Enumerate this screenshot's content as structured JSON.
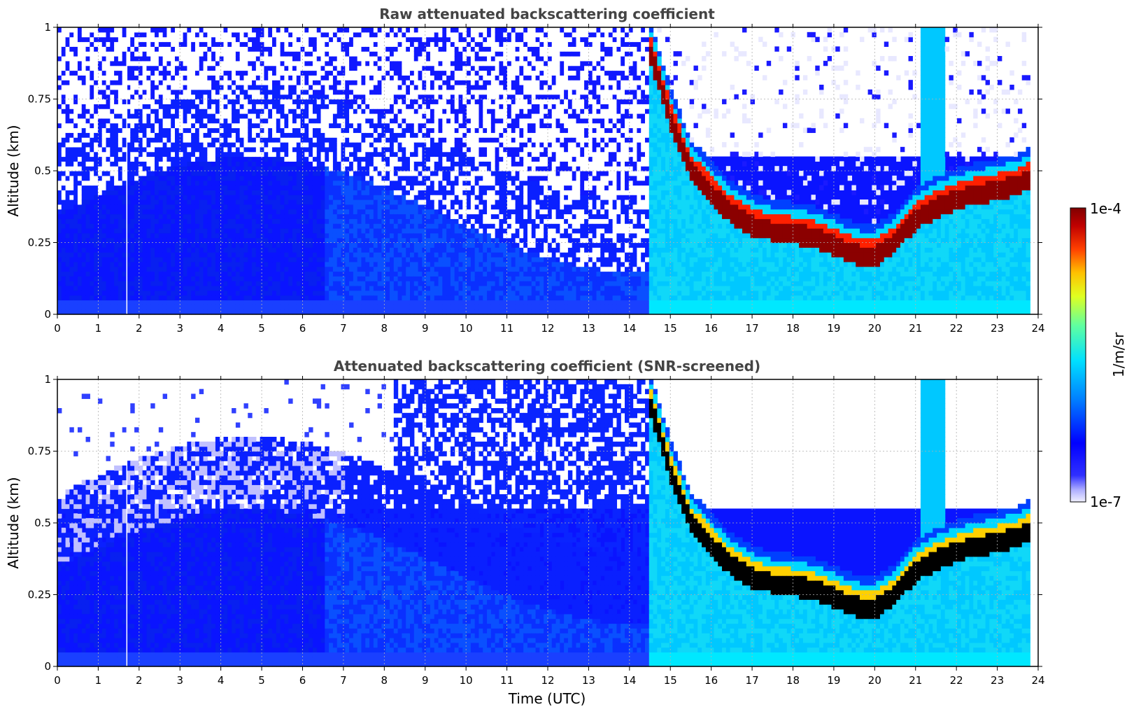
{
  "chart_data": [
    {
      "type": "heatmap",
      "title": "Raw attenuated backscattering coefficient",
      "ylabel": "Altitude (km)",
      "xlabel": "",
      "xlim": [
        0,
        24
      ],
      "ylim": [
        0,
        1
      ],
      "x_ticks": [
        0,
        1,
        2,
        3,
        4,
        5,
        6,
        7,
        8,
        9,
        10,
        11,
        12,
        13,
        14,
        15,
        16,
        17,
        18,
        19,
        20,
        21,
        22,
        23,
        24
      ],
      "y_ticks": [
        "0",
        "0.25",
        "0.5",
        "0.75",
        "1"
      ],
      "y_tick_values": [
        0,
        0.25,
        0.5,
        0.75,
        1
      ],
      "grid": true,
      "variant": "raw",
      "cloud_layer": {
        "description_free": true,
        "time": [
          14.5,
          15.0,
          15.5,
          16.0,
          16.5,
          17.0,
          17.5,
          18.0,
          18.5,
          19.0,
          19.5,
          20.0,
          20.5,
          21.0,
          21.5,
          22.0,
          22.5,
          23.0,
          23.5,
          23.8
        ],
        "center_altitude": [
          0.92,
          0.68,
          0.5,
          0.42,
          0.35,
          0.31,
          0.29,
          0.28,
          0.27,
          0.24,
          0.21,
          0.2,
          0.25,
          0.33,
          0.37,
          0.4,
          0.42,
          0.43,
          0.45,
          0.47
        ]
      }
    },
    {
      "type": "heatmap",
      "title": "Attenuated backscattering coefficient (SNR-screened)",
      "ylabel": "Altitude (km)",
      "xlabel": "Time (UTC)",
      "xlim": [
        0,
        24
      ],
      "ylim": [
        0,
        1
      ],
      "x_ticks": [
        0,
        1,
        2,
        3,
        4,
        5,
        6,
        7,
        8,
        9,
        10,
        11,
        12,
        13,
        14,
        15,
        16,
        17,
        18,
        19,
        20,
        21,
        22,
        23,
        24
      ],
      "y_ticks": [
        "0",
        "0.25",
        "0.5",
        "0.75",
        "1"
      ],
      "y_tick_values": [
        0,
        0.25,
        0.5,
        0.75,
        1
      ],
      "grid": true,
      "variant": "screened",
      "cloud_layer": {
        "time": [
          14.5,
          15.0,
          15.5,
          16.0,
          16.5,
          17.0,
          17.5,
          18.0,
          18.5,
          19.0,
          19.5,
          20.0,
          20.5,
          21.0,
          21.5,
          22.0,
          22.5,
          23.0,
          23.5,
          23.8
        ],
        "center_altitude": [
          0.92,
          0.68,
          0.5,
          0.42,
          0.35,
          0.31,
          0.29,
          0.28,
          0.27,
          0.24,
          0.21,
          0.2,
          0.25,
          0.33,
          0.37,
          0.4,
          0.42,
          0.43,
          0.45,
          0.47
        ]
      }
    }
  ],
  "colorbar": {
    "label": "1/m/sr",
    "max_label": "1e-4",
    "min_label": "1e-7",
    "colormap": "jet"
  }
}
